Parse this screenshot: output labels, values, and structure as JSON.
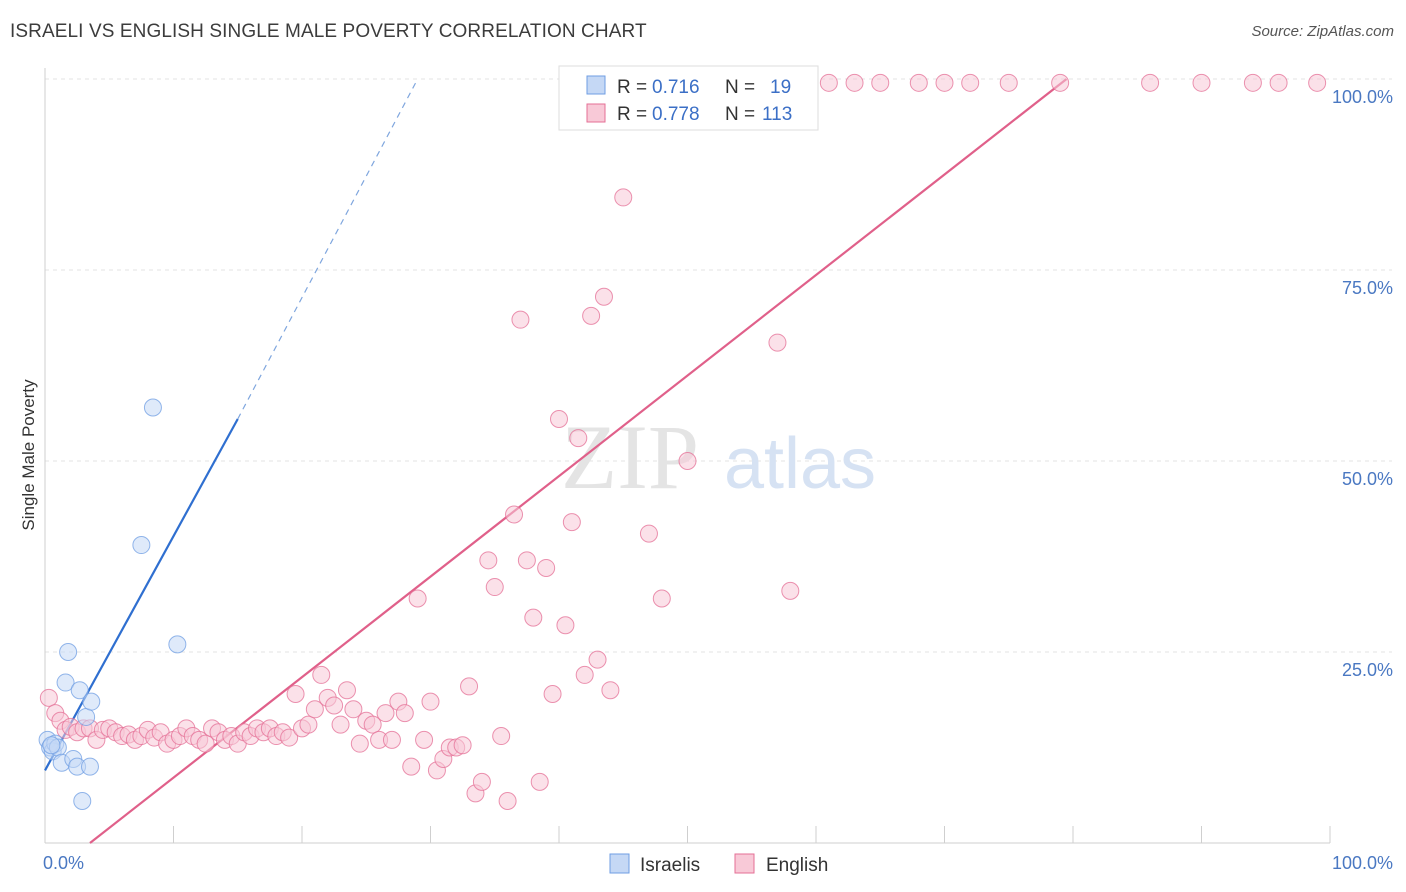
{
  "title": "ISRAELI VS ENGLISH SINGLE MALE POVERTY CORRELATION CHART",
  "source": "Source: ZipAtlas.com",
  "watermark": {
    "zip": "ZIP",
    "atlas": "atlas"
  },
  "chart_data": {
    "type": "scatter",
    "ylabel": "Single Male Poverty",
    "xlabel": "",
    "x_tick_labels": [
      "0.0%",
      "100.0%"
    ],
    "y_tick_labels": [
      "25.0%",
      "50.0%",
      "75.0%",
      "100.0%"
    ],
    "xlim": [
      0,
      100
    ],
    "ylim": [
      0,
      100
    ],
    "grid": true,
    "legend_position": "top-center",
    "stats": [
      {
        "series": "Israelis",
        "r_label": "R = ",
        "r": "0.716",
        "n_label": "N = ",
        "n": "19"
      },
      {
        "series": "English",
        "r_label": "R = ",
        "r": "0.778",
        "n_label": "N = ",
        "n": "113"
      }
    ],
    "series": [
      {
        "name": "Israelis",
        "color": "#6f9ee3",
        "fill": "#c5d8f5",
        "trend": {
          "x1": 0,
          "y1": 9.5,
          "x2": 15,
          "y2": 55.5,
          "dash_to_x": 29,
          "dash_to_y": 100
        },
        "points": [
          [
            0.2,
            13.5
          ],
          [
            0.4,
            12.5
          ],
          [
            0.6,
            12.0
          ],
          [
            0.8,
            13.0
          ],
          [
            1.0,
            12.5
          ],
          [
            1.3,
            10.5
          ],
          [
            1.6,
            21.0
          ],
          [
            1.8,
            25.0
          ],
          [
            2.2,
            11.0
          ],
          [
            2.5,
            10.0
          ],
          [
            2.7,
            20.0
          ],
          [
            2.9,
            5.5
          ],
          [
            3.2,
            16.5
          ],
          [
            3.5,
            10.0
          ],
          [
            3.6,
            18.5
          ],
          [
            7.5,
            39.0
          ],
          [
            8.4,
            57.0
          ],
          [
            10.3,
            26.0
          ],
          [
            0.5,
            12.8
          ]
        ]
      },
      {
        "name": "English",
        "color": "#e46f96",
        "fill": "#f8c9d7",
        "trend": {
          "x1": 3.5,
          "y1": 0,
          "x2": 79.5,
          "y2": 100
        },
        "points": [
          [
            0.3,
            19.0
          ],
          [
            0.8,
            17.0
          ],
          [
            1.2,
            16.0
          ],
          [
            1.6,
            14.8
          ],
          [
            2.0,
            15.2
          ],
          [
            2.5,
            14.5
          ],
          [
            3.0,
            15.0
          ],
          [
            3.5,
            15.0
          ],
          [
            4.0,
            13.5
          ],
          [
            4.5,
            14.8
          ],
          [
            5.0,
            15.0
          ],
          [
            5.5,
            14.5
          ],
          [
            6.0,
            14.0
          ],
          [
            6.5,
            14.2
          ],
          [
            7.0,
            13.5
          ],
          [
            7.5,
            14.0
          ],
          [
            8.0,
            14.8
          ],
          [
            8.5,
            13.8
          ],
          [
            9.0,
            14.5
          ],
          [
            9.5,
            13.0
          ],
          [
            10.0,
            13.5
          ],
          [
            10.5,
            14.0
          ],
          [
            11.0,
            15.0
          ],
          [
            11.5,
            14.0
          ],
          [
            12.0,
            13.5
          ],
          [
            12.5,
            13.0
          ],
          [
            13.0,
            15.0
          ],
          [
            13.5,
            14.5
          ],
          [
            14.0,
            13.5
          ],
          [
            14.5,
            14.0
          ],
          [
            15.0,
            13.0
          ],
          [
            15.5,
            14.5
          ],
          [
            16.0,
            14.0
          ],
          [
            16.5,
            15.0
          ],
          [
            17.0,
            14.5
          ],
          [
            17.5,
            15.0
          ],
          [
            18.0,
            14.0
          ],
          [
            18.5,
            14.5
          ],
          [
            19.0,
            13.8
          ],
          [
            19.5,
            19.5
          ],
          [
            20.0,
            15.0
          ],
          [
            20.5,
            15.5
          ],
          [
            21.0,
            17.5
          ],
          [
            21.5,
            22.0
          ],
          [
            22.0,
            19.0
          ],
          [
            22.5,
            18.0
          ],
          [
            23.0,
            15.5
          ],
          [
            23.5,
            20.0
          ],
          [
            24.0,
            17.5
          ],
          [
            24.5,
            13.0
          ],
          [
            25.0,
            16.0
          ],
          [
            25.5,
            15.5
          ],
          [
            26.0,
            13.5
          ],
          [
            26.5,
            17.0
          ],
          [
            27.0,
            13.5
          ],
          [
            27.5,
            18.5
          ],
          [
            28.0,
            17.0
          ],
          [
            28.5,
            10.0
          ],
          [
            29.0,
            32.0
          ],
          [
            29.5,
            13.5
          ],
          [
            30.0,
            18.5
          ],
          [
            30.5,
            9.5
          ],
          [
            31.0,
            11.0
          ],
          [
            31.5,
            12.5
          ],
          [
            32.0,
            12.5
          ],
          [
            32.5,
            12.8
          ],
          [
            33.0,
            20.5
          ],
          [
            33.5,
            6.5
          ],
          [
            34.0,
            8.0
          ],
          [
            34.5,
            37.0
          ],
          [
            35.0,
            33.5
          ],
          [
            35.5,
            14.0
          ],
          [
            36.0,
            5.5
          ],
          [
            36.5,
            43.0
          ],
          [
            37.0,
            68.5
          ],
          [
            37.5,
            37.0
          ],
          [
            38.0,
            29.5
          ],
          [
            38.5,
            8.0
          ],
          [
            39.0,
            36.0
          ],
          [
            39.5,
            19.5
          ],
          [
            40.0,
            55.5
          ],
          [
            40.5,
            28.5
          ],
          [
            41.0,
            42.0
          ],
          [
            41.5,
            53.0
          ],
          [
            42.0,
            22.0
          ],
          [
            42.5,
            69.0
          ],
          [
            43.0,
            24.0
          ],
          [
            43.5,
            71.5
          ],
          [
            44.0,
            20.0
          ],
          [
            45.0,
            84.5
          ],
          [
            46.0,
            99.5
          ],
          [
            47.0,
            40.5
          ],
          [
            48.0,
            32.0
          ],
          [
            49.0,
            99.5
          ],
          [
            50.0,
            50.0
          ],
          [
            52.0,
            99.5
          ],
          [
            53.0,
            99.5
          ],
          [
            57.0,
            65.5
          ],
          [
            58.0,
            33.0
          ],
          [
            59.0,
            99.5
          ],
          [
            61.0,
            99.5
          ],
          [
            63.0,
            99.5
          ],
          [
            65.0,
            99.5
          ],
          [
            68.0,
            99.5
          ],
          [
            70.0,
            99.5
          ],
          [
            72.0,
            99.5
          ],
          [
            75.0,
            99.5
          ],
          [
            79.0,
            99.5
          ],
          [
            86.0,
            99.5
          ],
          [
            90.0,
            99.5
          ],
          [
            94.0,
            99.5
          ],
          [
            96.0,
            99.5
          ],
          [
            99.0,
            99.5
          ]
        ]
      }
    ]
  }
}
